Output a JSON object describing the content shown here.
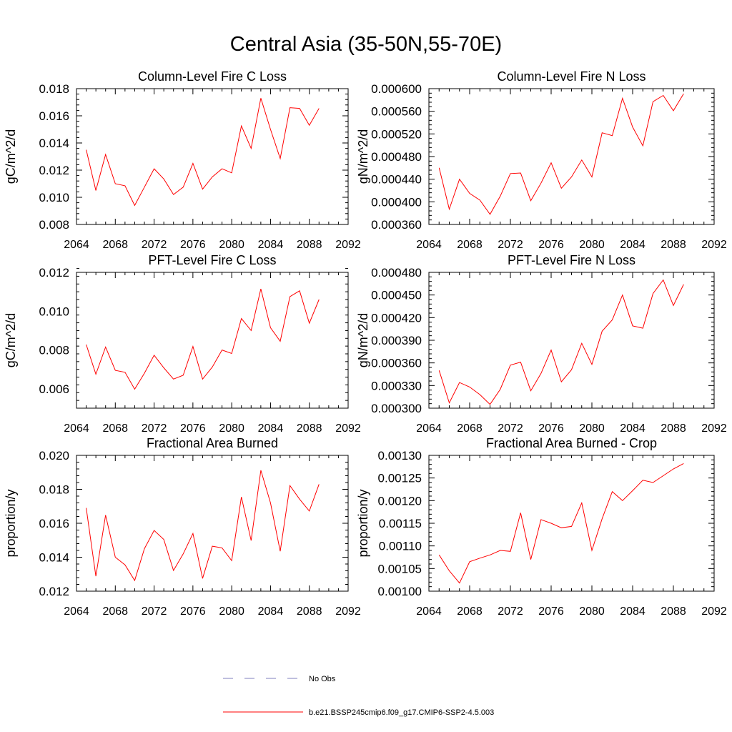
{
  "page_title": "Central Asia (35-50N,55-70E)",
  "series_color": "#ff0000",
  "obs_color": "#7f7fbf",
  "legend": {
    "obs_label": "No Obs",
    "model_label": "b.e21.BSSP245cmip6.f09_g17.CMIP6-SSP2-4.5.003"
  },
  "chart_data": [
    {
      "type": "line",
      "title": "Column-Level Fire C Loss",
      "ylabel": "gC/m^2/d",
      "xlim": [
        2064,
        2092
      ],
      "xticks": [
        "2064",
        "2068",
        "2072",
        "2076",
        "2080",
        "2084",
        "2088",
        "2092"
      ],
      "ylim": [
        0.008,
        0.018
      ],
      "yticks": [
        "0.008",
        "0.010",
        "0.012",
        "0.014",
        "0.016",
        "0.018"
      ],
      "x": [
        2065,
        2066,
        2067,
        2068,
        2069,
        2070,
        2071,
        2072,
        2073,
        2074,
        2075,
        2076,
        2077,
        2078,
        2079,
        2080,
        2081,
        2082,
        2083,
        2084,
        2085,
        2086,
        2087,
        2088,
        2089
      ],
      "series": [
        {
          "name": "b.e21.BSSP245cmip6.f09_g17.CMIP6-SSP2-4.5.003",
          "values": [
            0.0135,
            0.0105,
            0.01315,
            0.011,
            0.01085,
            0.0094,
            0.01075,
            0.0121,
            0.01135,
            0.0102,
            0.01075,
            0.0125,
            0.0106,
            0.0115,
            0.0121,
            0.0118,
            0.01525,
            0.0136,
            0.0173,
            0.015,
            0.01285,
            0.0166,
            0.01655,
            0.0153,
            0.01655
          ]
        }
      ]
    },
    {
      "type": "line",
      "title": "Column-Level Fire N Loss",
      "ylabel": "gN/m^2/d",
      "xlim": [
        2064,
        2092
      ],
      "xticks": [
        "2064",
        "2068",
        "2072",
        "2076",
        "2080",
        "2084",
        "2088",
        "2092"
      ],
      "ylim": [
        0.00036,
        0.0006
      ],
      "yticks": [
        "0.000360",
        "0.000400",
        "0.000440",
        "0.000480",
        "0.000520",
        "0.000560",
        "0.000600"
      ],
      "x": [
        2065,
        2066,
        2067,
        2068,
        2069,
        2070,
        2071,
        2072,
        2073,
        2074,
        2075,
        2076,
        2077,
        2078,
        2079,
        2080,
        2081,
        2082,
        2083,
        2084,
        2085,
        2086,
        2087,
        2088,
        2089
      ],
      "series": [
        {
          "name": "b.e21.BSSP245cmip6.f09_g17.CMIP6-SSP2-4.5.003",
          "values": [
            0.00046,
            0.000387,
            0.00044,
            0.000415,
            0.000403,
            0.000378,
            0.00041,
            0.00045,
            0.000451,
            0.000402,
            0.000433,
            0.000469,
            0.000424,
            0.000444,
            0.000474,
            0.000444,
            0.000522,
            0.000517,
            0.000583,
            0.000532,
            0.000499,
            0.000577,
            0.000588,
            0.000561,
            0.000591
          ]
        }
      ]
    },
    {
      "type": "line",
      "title": "PFT-Level Fire C Loss",
      "ylabel": "gC/m^2/d",
      "xlim": [
        2064,
        2092
      ],
      "xticks": [
        "2064",
        "2068",
        "2072",
        "2076",
        "2080",
        "2084",
        "2088",
        "2092"
      ],
      "ylim": [
        0.005,
        0.012
      ],
      "yticks": [
        "0.006",
        "0.008",
        "0.010",
        "0.012"
      ],
      "x": [
        2065,
        2066,
        2067,
        2068,
        2069,
        2070,
        2071,
        2072,
        2073,
        2074,
        2075,
        2076,
        2077,
        2078,
        2079,
        2080,
        2081,
        2082,
        2083,
        2084,
        2085,
        2086,
        2087,
        2088,
        2089
      ],
      "series": [
        {
          "name": "b.e21.BSSP245cmip6.f09_g17.CMIP6-SSP2-4.5.003",
          "values": [
            0.00828,
            0.00675,
            0.00815,
            0.00695,
            0.00685,
            0.00598,
            0.0068,
            0.00773,
            0.00708,
            0.0065,
            0.0067,
            0.00818,
            0.0065,
            0.00712,
            0.008,
            0.00782,
            0.00962,
            0.009,
            0.01115,
            0.00915,
            0.00845,
            0.01075,
            0.01105,
            0.00938,
            0.0106
          ]
        }
      ]
    },
    {
      "type": "line",
      "title": "PFT-Level Fire N Loss",
      "ylabel": "gN/m^2/d",
      "xlim": [
        2064,
        2092
      ],
      "xticks": [
        "2064",
        "2068",
        "2072",
        "2076",
        "2080",
        "2084",
        "2088",
        "2092"
      ],
      "ylim": [
        0.0003,
        0.00048
      ],
      "yticks": [
        "0.000300",
        "0.000330",
        "0.000360",
        "0.000390",
        "0.000420",
        "0.000450",
        "0.000480"
      ],
      "x": [
        2065,
        2066,
        2067,
        2068,
        2069,
        2070,
        2071,
        2072,
        2073,
        2074,
        2075,
        2076,
        2077,
        2078,
        2079,
        2080,
        2081,
        2082,
        2083,
        2084,
        2085,
        2086,
        2087,
        2088,
        2089
      ],
      "series": [
        {
          "name": "b.e21.BSSP245cmip6.f09_g17.CMIP6-SSP2-4.5.003",
          "values": [
            0.00035,
            0.000307,
            0.000334,
            0.000328,
            0.000318,
            0.000305,
            0.000325,
            0.000357,
            0.000361,
            0.000323,
            0.000346,
            0.000377,
            0.000335,
            0.000351,
            0.000386,
            0.000358,
            0.000402,
            0.000417,
            0.00045,
            0.000409,
            0.000406,
            0.000452,
            0.00047,
            0.000436,
            0.000464
          ]
        }
      ]
    },
    {
      "type": "line",
      "title": "Fractional Area Burned",
      "ylabel": "proportion/y",
      "xlim": [
        2064,
        2092
      ],
      "xticks": [
        "2064",
        "2068",
        "2072",
        "2076",
        "2080",
        "2084",
        "2088",
        "2092"
      ],
      "ylim": [
        0.012,
        0.02
      ],
      "yticks": [
        "0.012",
        "0.014",
        "0.016",
        "0.018",
        "0.020"
      ],
      "x": [
        2065,
        2066,
        2067,
        2068,
        2069,
        2070,
        2071,
        2072,
        2073,
        2074,
        2075,
        2076,
        2077,
        2078,
        2079,
        2080,
        2081,
        2082,
        2083,
        2084,
        2085,
        2086,
        2087,
        2088,
        2089
      ],
      "series": [
        {
          "name": "b.e21.BSSP245cmip6.f09_g17.CMIP6-SSP2-4.5.003",
          "values": [
            0.0169,
            0.01288,
            0.01648,
            0.014,
            0.01355,
            0.01263,
            0.0145,
            0.01558,
            0.01505,
            0.01322,
            0.0142,
            0.0154,
            0.01275,
            0.01465,
            0.01455,
            0.0138,
            0.01755,
            0.01498,
            0.01912,
            0.0172,
            0.01435,
            0.01822,
            0.01742,
            0.01672,
            0.0183
          ]
        }
      ]
    },
    {
      "type": "line",
      "title": "Fractional Area Burned - Crop",
      "ylabel": "proportion/y",
      "xlim": [
        2064,
        2092
      ],
      "xticks": [
        "2064",
        "2068",
        "2072",
        "2076",
        "2080",
        "2084",
        "2088",
        "2092"
      ],
      "ylim": [
        0.001,
        0.0013
      ],
      "yticks": [
        "0.00100",
        "0.00105",
        "0.00110",
        "0.00115",
        "0.00120",
        "0.00125",
        "0.00130"
      ],
      "x": [
        2065,
        2066,
        2067,
        2068,
        2069,
        2070,
        2071,
        2072,
        2073,
        2074,
        2075,
        2076,
        2077,
        2078,
        2079,
        2080,
        2081,
        2082,
        2083,
        2084,
        2085,
        2086,
        2087,
        2088,
        2089
      ],
      "series": [
        {
          "name": "b.e21.BSSP245cmip6.f09_g17.CMIP6-SSP2-4.5.003",
          "values": [
            0.00108,
            0.001045,
            0.001018,
            0.001065,
            0.001073,
            0.00108,
            0.00109,
            0.001088,
            0.001173,
            0.00107,
            0.001158,
            0.00115,
            0.00114,
            0.001143,
            0.001195,
            0.00109,
            0.00116,
            0.00122,
            0.0012,
            0.001222,
            0.001245,
            0.00124,
            0.001255,
            0.00127,
            0.001282
          ]
        }
      ]
    }
  ]
}
